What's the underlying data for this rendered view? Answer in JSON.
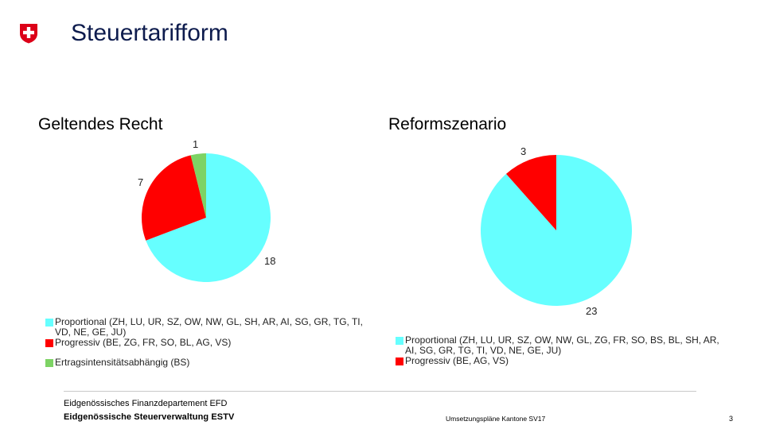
{
  "header": {
    "title": "Steuertarifform",
    "logo_icon": "swiss-cross-icon",
    "logo_color": "#dc0018"
  },
  "colors": {
    "proportional": "#66ffff",
    "progressiv": "#ff0000",
    "ertragsintensitaet": "#7dd364"
  },
  "chart_data": [
    {
      "type": "pie",
      "title": "Geltendes Recht",
      "slices": [
        {
          "label": "Proportional (ZH, LU, UR, SZ, OW, NW, GL, SH, AR, AI, SG, GR, TG, TI, VD, NE, GE, JU)",
          "value": 18,
          "color": "#66ffff"
        },
        {
          "label": "Progressiv (BE, ZG, FR, SO, BL, AG, VS)",
          "value": 7,
          "color": "#ff0000"
        },
        {
          "label": "Ertragsintensitätsabhängig (BS)",
          "value": 1,
          "color": "#7dd364"
        }
      ],
      "legend": "bottom"
    },
    {
      "type": "pie",
      "title": "Reformszenario",
      "slices": [
        {
          "label": "Proportional (ZH, LU, UR, SZ, OW, NW, GL, ZG, FR, SO, BS, BL, SH, AR, AI, SG, GR, TG, TI, VD, NE, GE, JU)",
          "value": 23,
          "color": "#66ffff"
        },
        {
          "label": "Progressiv (BE, AG, VS)",
          "value": 3,
          "color": "#ff0000"
        }
      ],
      "legend": "bottom"
    }
  ],
  "footer": {
    "department": "Eidgenössisches Finanzdepartement EFD",
    "agency": "Eidgenössische Steuerverwaltung ESTV",
    "center": "Umsetzungspläne Kantone SV17",
    "page": "3"
  }
}
